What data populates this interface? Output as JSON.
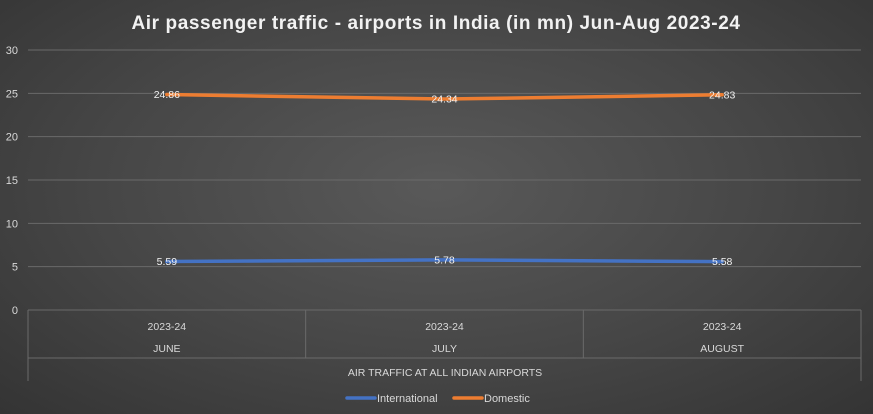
{
  "chart_data": {
    "type": "line",
    "title": "Air passenger traffic - airports in India (in mn)  Jun-Aug 2023-24",
    "xlabel": "AIR TRAFFIC AT ALL INDIAN AIRPORTS",
    "ylabel": "",
    "ylim": [
      0,
      30
    ],
    "yticks": [
      0,
      5,
      10,
      15,
      20,
      25,
      30
    ],
    "grid": true,
    "legend_position": "bottom",
    "categories": [
      {
        "year": "2023-24",
        "month": "JUNE"
      },
      {
        "year": "2023-24",
        "month": "JULY"
      },
      {
        "year": "2023-24",
        "month": "AUGUST"
      }
    ],
    "series": [
      {
        "name": "International",
        "color": "#4472c4",
        "values": [
          5.59,
          5.78,
          5.58
        ],
        "labels": [
          "5.59",
          "5.78",
          "5.58"
        ]
      },
      {
        "name": "Domestic",
        "color": "#ed7d31",
        "values": [
          24.86,
          24.34,
          24.83
        ],
        "labels": [
          "24.86",
          "24.34",
          "24.83"
        ]
      }
    ]
  }
}
